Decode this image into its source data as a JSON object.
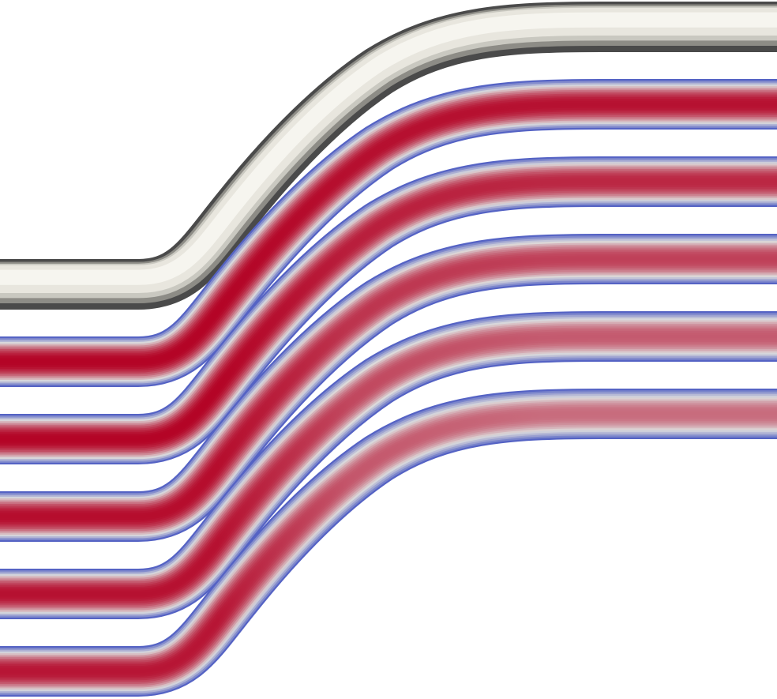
{
  "scene": {
    "background_color": "#ffffff",
    "description_visible_text": "",
    "pipe": {
      "solid_color": "#e8e6de",
      "shadow_color": "#4a4a4a",
      "highlight_color": "#f6f5ef"
    },
    "colormap": {
      "name": "cool-to-warm",
      "low_color": "#3b4cc0",
      "mid_color": "#dddcdc",
      "high_color": "#b40426"
    },
    "slices": [
      {
        "index": 0,
        "kind": "solid-surface"
      },
      {
        "index": 1,
        "kind": "velocity-section",
        "core_level_start": 1.0,
        "core_level_end": 0.97
      },
      {
        "index": 2,
        "kind": "velocity-section",
        "core_level_start": 1.0,
        "core_level_end": 0.92
      },
      {
        "index": 3,
        "kind": "velocity-section",
        "core_level_start": 0.98,
        "core_level_end": 0.86
      },
      {
        "index": 4,
        "kind": "velocity-section",
        "core_level_start": 0.97,
        "core_level_end": 0.8
      },
      {
        "index": 5,
        "kind": "velocity-section",
        "core_level_start": 0.96,
        "core_level_end": 0.76
      }
    ]
  }
}
